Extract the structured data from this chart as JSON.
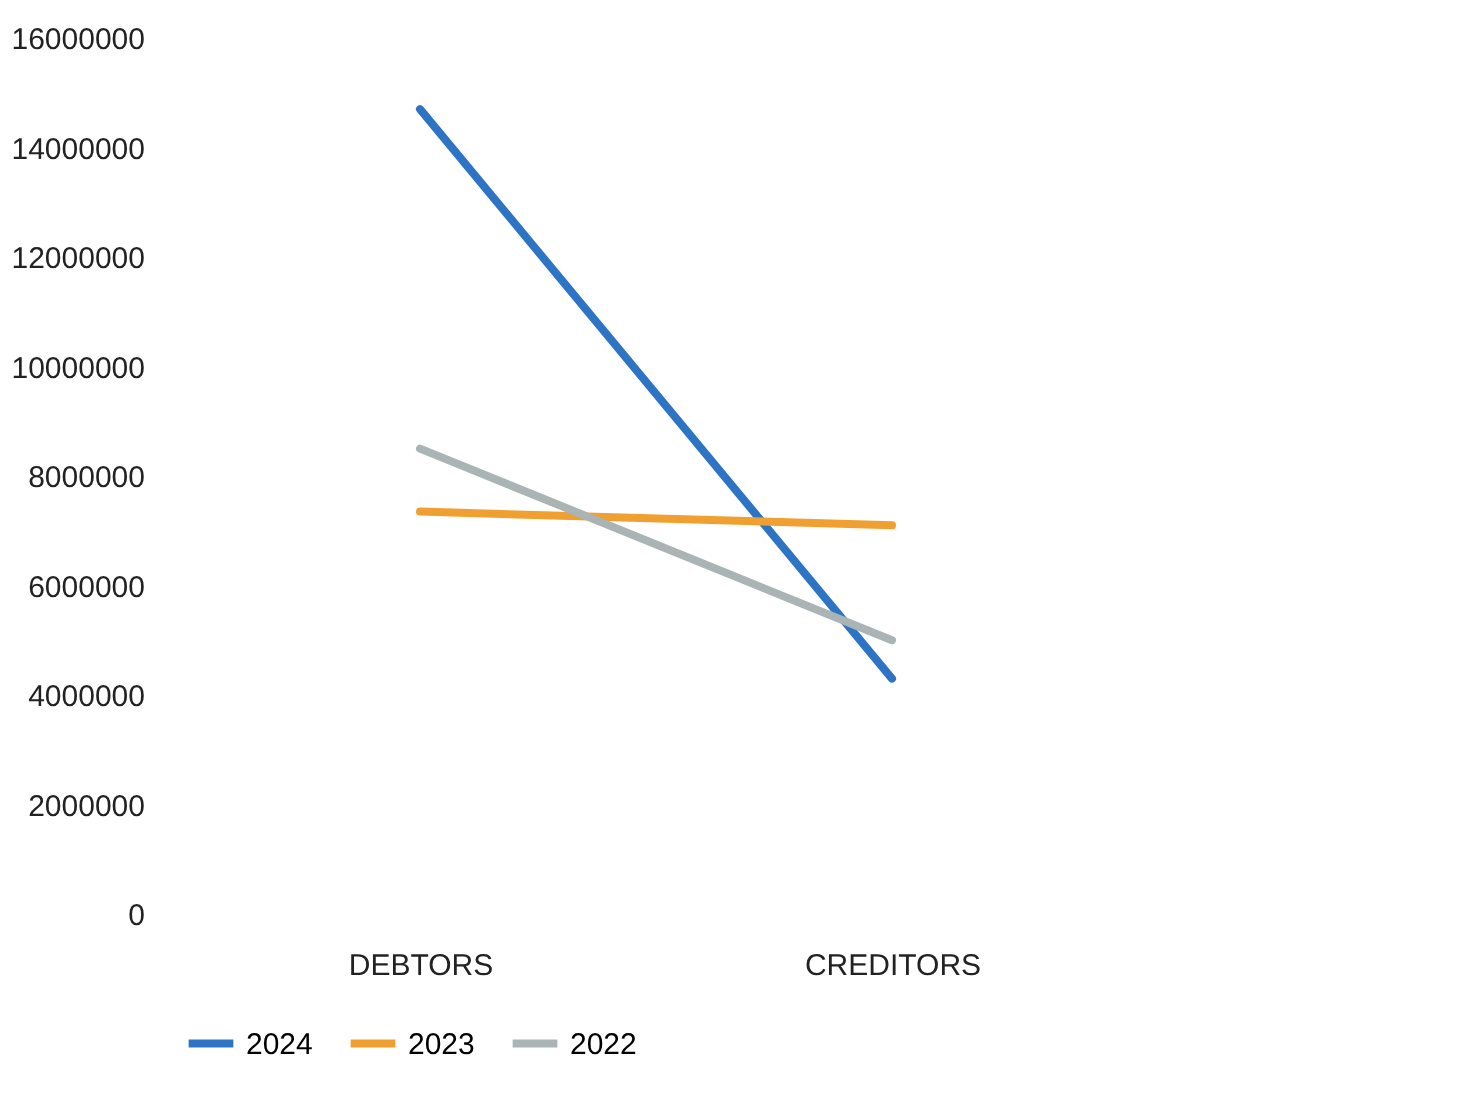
{
  "chart_data": {
    "type": "line",
    "categories": [
      "DEBTORS",
      "CREDITORS"
    ],
    "series": [
      {
        "name": "2024",
        "color": "#2e74c4",
        "values": [
          14700000,
          4300000
        ]
      },
      {
        "name": "2023",
        "color": "#f0a030",
        "values": [
          7350000,
          7100000
        ]
      },
      {
        "name": "2022",
        "color": "#aab4b4",
        "values": [
          8500000,
          5000000
        ]
      }
    ],
    "ylim": [
      0,
      16000000
    ],
    "yticks": [
      0,
      2000000,
      4000000,
      6000000,
      8000000,
      10000000,
      12000000,
      14000000,
      16000000
    ],
    "grid": false,
    "legend": "bottom",
    "marker": "none",
    "line_style": "solid"
  }
}
